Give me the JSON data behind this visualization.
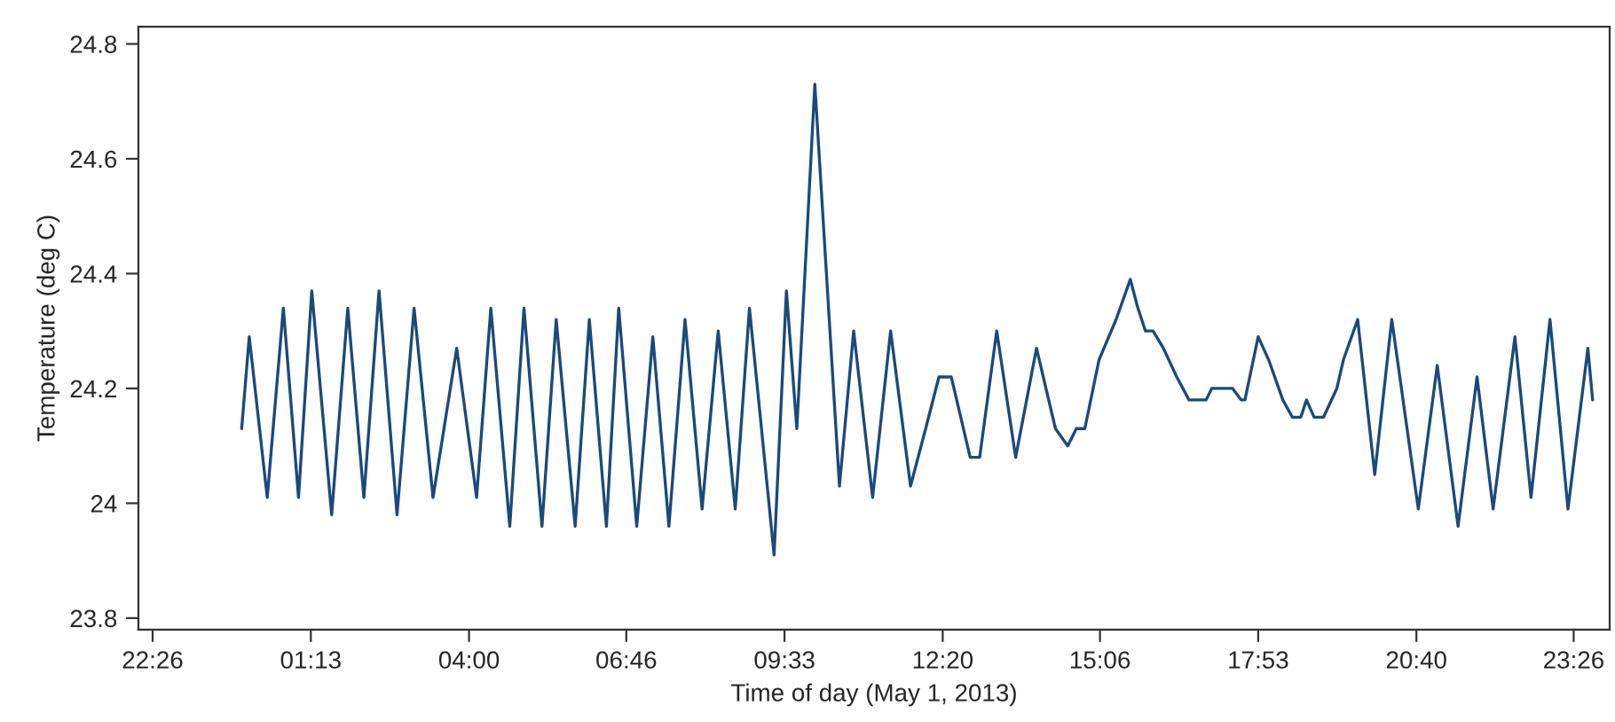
{
  "chart_data": {
    "type": "line",
    "xlabel": "Time of day (May 1, 2013)",
    "ylabel": "Temperature (deg C)",
    "xlim": [
      "2013-04-30T22:11",
      "2013-05-02T00:04"
    ],
    "ylim": [
      23.78,
      24.83
    ],
    "xticks": [
      {
        "value": "2013-04-30T22:26",
        "label": "22:26"
      },
      {
        "value": "2013-05-01T01:13",
        "label": "01:13"
      },
      {
        "value": "2013-05-01T04:00",
        "label": "04:00"
      },
      {
        "value": "2013-05-01T06:46",
        "label": "06:46"
      },
      {
        "value": "2013-05-01T09:33",
        "label": "09:33"
      },
      {
        "value": "2013-05-01T12:20",
        "label": "12:20"
      },
      {
        "value": "2013-05-01T15:06",
        "label": "15:06"
      },
      {
        "value": "2013-05-01T17:53",
        "label": "17:53"
      },
      {
        "value": "2013-05-01T20:40",
        "label": "20:40"
      },
      {
        "value": "2013-05-01T23:26",
        "label": "23:26"
      }
    ],
    "yticks": [
      23.8,
      24,
      24.2,
      24.4,
      24.6,
      24.8
    ],
    "grid": false,
    "marker": "none",
    "line_style": "solid",
    "x": [
      "2013-05-01T00:00",
      "2013-05-01T00:08",
      "2013-05-01T00:27",
      "2013-05-01T00:44",
      "2013-05-01T01:00",
      "2013-05-01T01:14",
      "2013-05-01T01:35",
      "2013-05-01T01:52",
      "2013-05-01T02:09",
      "2013-05-01T02:25",
      "2013-05-01T02:44",
      "2013-05-01T03:02",
      "2013-05-01T03:22",
      "2013-05-01T03:47",
      "2013-05-01T04:08",
      "2013-05-01T04:23",
      "2013-05-01T04:43",
      "2013-05-01T04:58",
      "2013-05-01T05:17",
      "2013-05-01T05:32",
      "2013-05-01T05:52",
      "2013-05-01T06:07",
      "2013-05-01T06:25",
      "2013-05-01T06:38",
      "2013-05-01T06:57",
      "2013-05-01T07:14",
      "2013-05-01T07:31",
      "2013-05-01T07:48",
      "2013-05-01T08:06",
      "2013-05-01T08:23",
      "2013-05-01T08:41",
      "2013-05-01T08:56",
      "2013-05-01T09:22",
      "2013-05-01T09:35",
      "2013-05-01T09:46",
      "2013-05-01T10:05",
      "2013-05-01T10:31",
      "2013-05-01T10:46",
      "2013-05-01T11:06",
      "2013-05-01T11:25",
      "2013-05-01T11:46",
      "2013-05-01T12:02",
      "2013-05-01T12:16",
      "2013-05-01T12:29",
      "2013-05-01T12:49",
      "2013-05-01T12:59",
      "2013-05-01T13:17",
      "2013-05-01T13:37",
      "2013-05-01T13:59",
      "2013-05-01T14:19",
      "2013-05-01T14:32",
      "2013-05-01T14:41",
      "2013-05-01T14:50",
      "2013-05-01T15:05",
      "2013-05-01T15:23",
      "2013-05-01T15:38",
      "2013-05-01T15:46",
      "2013-05-01T15:54",
      "2013-05-01T16:02",
      "2013-05-01T16:13",
      "2013-05-01T16:27",
      "2013-05-01T16:40",
      "2013-05-01T16:58",
      "2013-05-01T17:04",
      "2013-05-01T17:26",
      "2013-05-01T17:35",
      "2013-05-01T17:39",
      "2013-05-01T17:53",
      "2013-05-01T18:04",
      "2013-05-01T18:19",
      "2013-05-01T18:29",
      "2013-05-01T18:38",
      "2013-05-01T18:44",
      "2013-05-01T18:52",
      "2013-05-01T19:02",
      "2013-05-01T19:16",
      "2013-05-01T19:23",
      "2013-05-01T19:38",
      "2013-05-01T19:56",
      "2013-05-01T20:14",
      "2013-05-01T20:42",
      "2013-05-01T21:02",
      "2013-05-01T21:24",
      "2013-05-01T21:44",
      "2013-05-01T22:01",
      "2013-05-01T22:24",
      "2013-05-01T22:41",
      "2013-05-01T23:01",
      "2013-05-01T23:20",
      "2013-05-01T23:41",
      "2013-05-01T23:46"
    ],
    "series": [
      {
        "color": "#1a4a7a",
        "values": [
          24.13,
          24.29,
          24.01,
          24.34,
          24.01,
          24.37,
          23.98,
          24.34,
          24.01,
          24.37,
          23.98,
          24.34,
          24.01,
          24.27,
          24.01,
          24.34,
          23.96,
          24.34,
          23.96,
          24.32,
          23.96,
          24.32,
          23.96,
          24.34,
          23.96,
          24.29,
          23.96,
          24.32,
          23.99,
          24.3,
          23.99,
          24.34,
          23.91,
          24.37,
          24.13,
          24.73,
          24.03,
          24.3,
          24.01,
          24.3,
          24.03,
          24.13,
          24.22,
          24.22,
          24.08,
          24.08,
          24.3,
          24.08,
          24.27,
          24.13,
          24.1,
          24.13,
          24.13,
          24.25,
          24.32,
          24.39,
          24.34,
          24.3,
          24.3,
          24.27,
          24.22,
          24.18,
          24.18,
          24.2,
          24.2,
          24.18,
          24.18,
          24.29,
          24.25,
          24.18,
          24.15,
          24.15,
          24.18,
          24.15,
          24.15,
          24.2,
          24.25,
          24.32,
          24.05,
          24.32,
          23.99,
          24.24,
          23.96,
          24.22,
          23.99,
          24.29,
          24.01,
          24.32,
          23.99,
          24.27,
          24.18
        ]
      }
    ]
  }
}
